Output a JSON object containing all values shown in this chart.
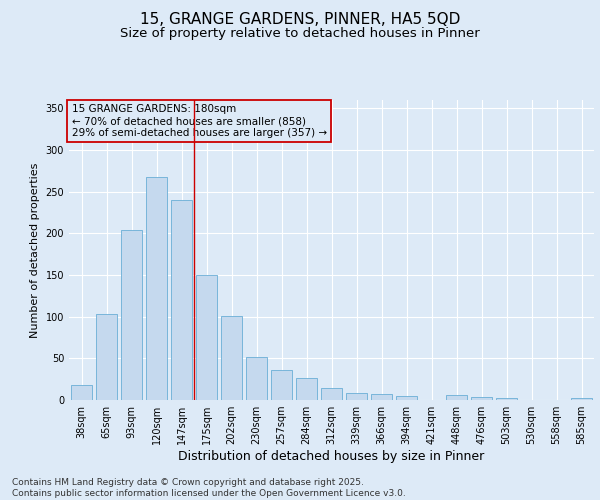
{
  "title_line1": "15, GRANGE GARDENS, PINNER, HA5 5QD",
  "title_line2": "Size of property relative to detached houses in Pinner",
  "xlabel": "Distribution of detached houses by size in Pinner",
  "ylabel": "Number of detached properties",
  "categories": [
    "38sqm",
    "65sqm",
    "93sqm",
    "120sqm",
    "147sqm",
    "175sqm",
    "202sqm",
    "230sqm",
    "257sqm",
    "284sqm",
    "312sqm",
    "339sqm",
    "366sqm",
    "394sqm",
    "421sqm",
    "448sqm",
    "476sqm",
    "503sqm",
    "530sqm",
    "558sqm",
    "585sqm"
  ],
  "values": [
    18,
    103,
    204,
    268,
    240,
    150,
    101,
    52,
    36,
    27,
    15,
    9,
    7,
    5,
    0,
    6,
    4,
    2,
    0,
    0,
    3
  ],
  "bar_color": "#c5d9ee",
  "bar_edge_color": "#6aaed6",
  "background_color": "#ddeaf7",
  "vline_color": "#cc0000",
  "vline_x": 4.5,
  "annotation_text": "15 GRANGE GARDENS: 180sqm\n← 70% of detached houses are smaller (858)\n29% of semi-detached houses are larger (357) →",
  "annotation_box_edge": "#cc0000",
  "grid_color": "#ffffff",
  "ylim_max": 360,
  "yticks": [
    0,
    50,
    100,
    150,
    200,
    250,
    300,
    350
  ],
  "footer_line1": "Contains HM Land Registry data © Crown copyright and database right 2025.",
  "footer_line2": "Contains public sector information licensed under the Open Government Licence v3.0.",
  "title_fontsize": 11,
  "subtitle_fontsize": 9.5,
  "ylabel_fontsize": 8,
  "xlabel_fontsize": 9,
  "tick_fontsize": 7,
  "annotation_fontsize": 7.5,
  "footer_fontsize": 6.5
}
